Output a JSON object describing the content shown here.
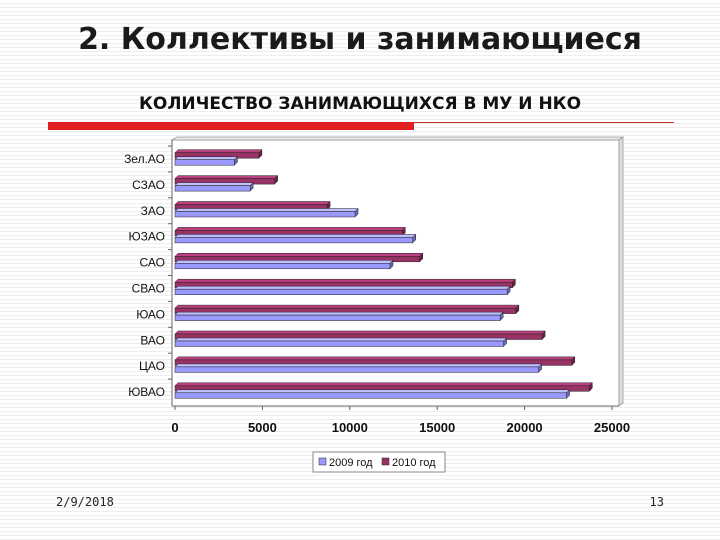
{
  "slide": {
    "title": "2. Коллективы и занимающиеся",
    "footer_date": "2/9/2018",
    "page_number": "13"
  },
  "chart_data": {
    "type": "bar",
    "orientation": "horizontal",
    "title": "КОЛИЧЕСТВО ЗАНИМАЮЩИХСЯ В МУ И НКО",
    "xlabel": "",
    "ylabel": "",
    "categories": [
      "Зел.АО",
      "СЗАО",
      "ЗАО",
      "ЮЗАО",
      "САО",
      "СВАО",
      "ЮАО",
      "ВАО",
      "ЦАО",
      "ЮВАО"
    ],
    "series": [
      {
        "name": "2009 год",
        "color": "#9999ff",
        "values": [
          3400,
          4300,
          10300,
          13600,
          12300,
          19000,
          18600,
          18800,
          20800,
          22400
        ]
      },
      {
        "name": "2010 год",
        "color": "#993366",
        "values": [
          4800,
          5700,
          8700,
          13000,
          14000,
          19300,
          19500,
          21000,
          22700,
          23700
        ]
      }
    ],
    "x_ticks": [
      "0",
      "5000",
      "10000",
      "15000",
      "20000",
      "25000"
    ],
    "xlim": [
      0,
      25000
    ],
    "grid": false,
    "legend_position": "bottom"
  }
}
